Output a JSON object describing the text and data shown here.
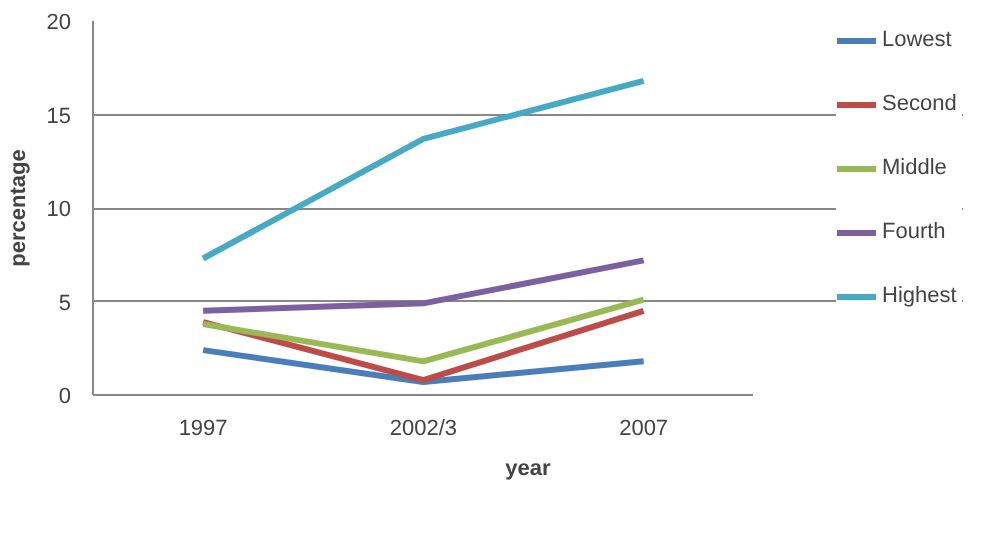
{
  "chart_data": {
    "type": "line",
    "xlabel": "year",
    "ylabel": "percentage",
    "categories": [
      "1997",
      "2002/3",
      "2007"
    ],
    "series": [
      {
        "name": "Lowest",
        "color": "#4a7ebb",
        "values": [
          2.4,
          0.7,
          1.8
        ]
      },
      {
        "name": "Second",
        "color": "#be4b48",
        "values": [
          3.9,
          0.8,
          4.5
        ]
      },
      {
        "name": "Middle",
        "color": "#98b954",
        "values": [
          3.8,
          1.8,
          5.1
        ]
      },
      {
        "name": "Fourth",
        "color": "#7d60a0",
        "values": [
          4.5,
          4.9,
          7.2
        ]
      },
      {
        "name": "Highest",
        "color": "#46aac5",
        "values": [
          7.3,
          13.7,
          16.8
        ]
      }
    ],
    "ylim": [
      0,
      20
    ],
    "yticks": [
      0,
      5,
      10,
      15,
      20
    ],
    "grid": "y",
    "legend": "right",
    "line_style": "solid",
    "marker": "none"
  }
}
